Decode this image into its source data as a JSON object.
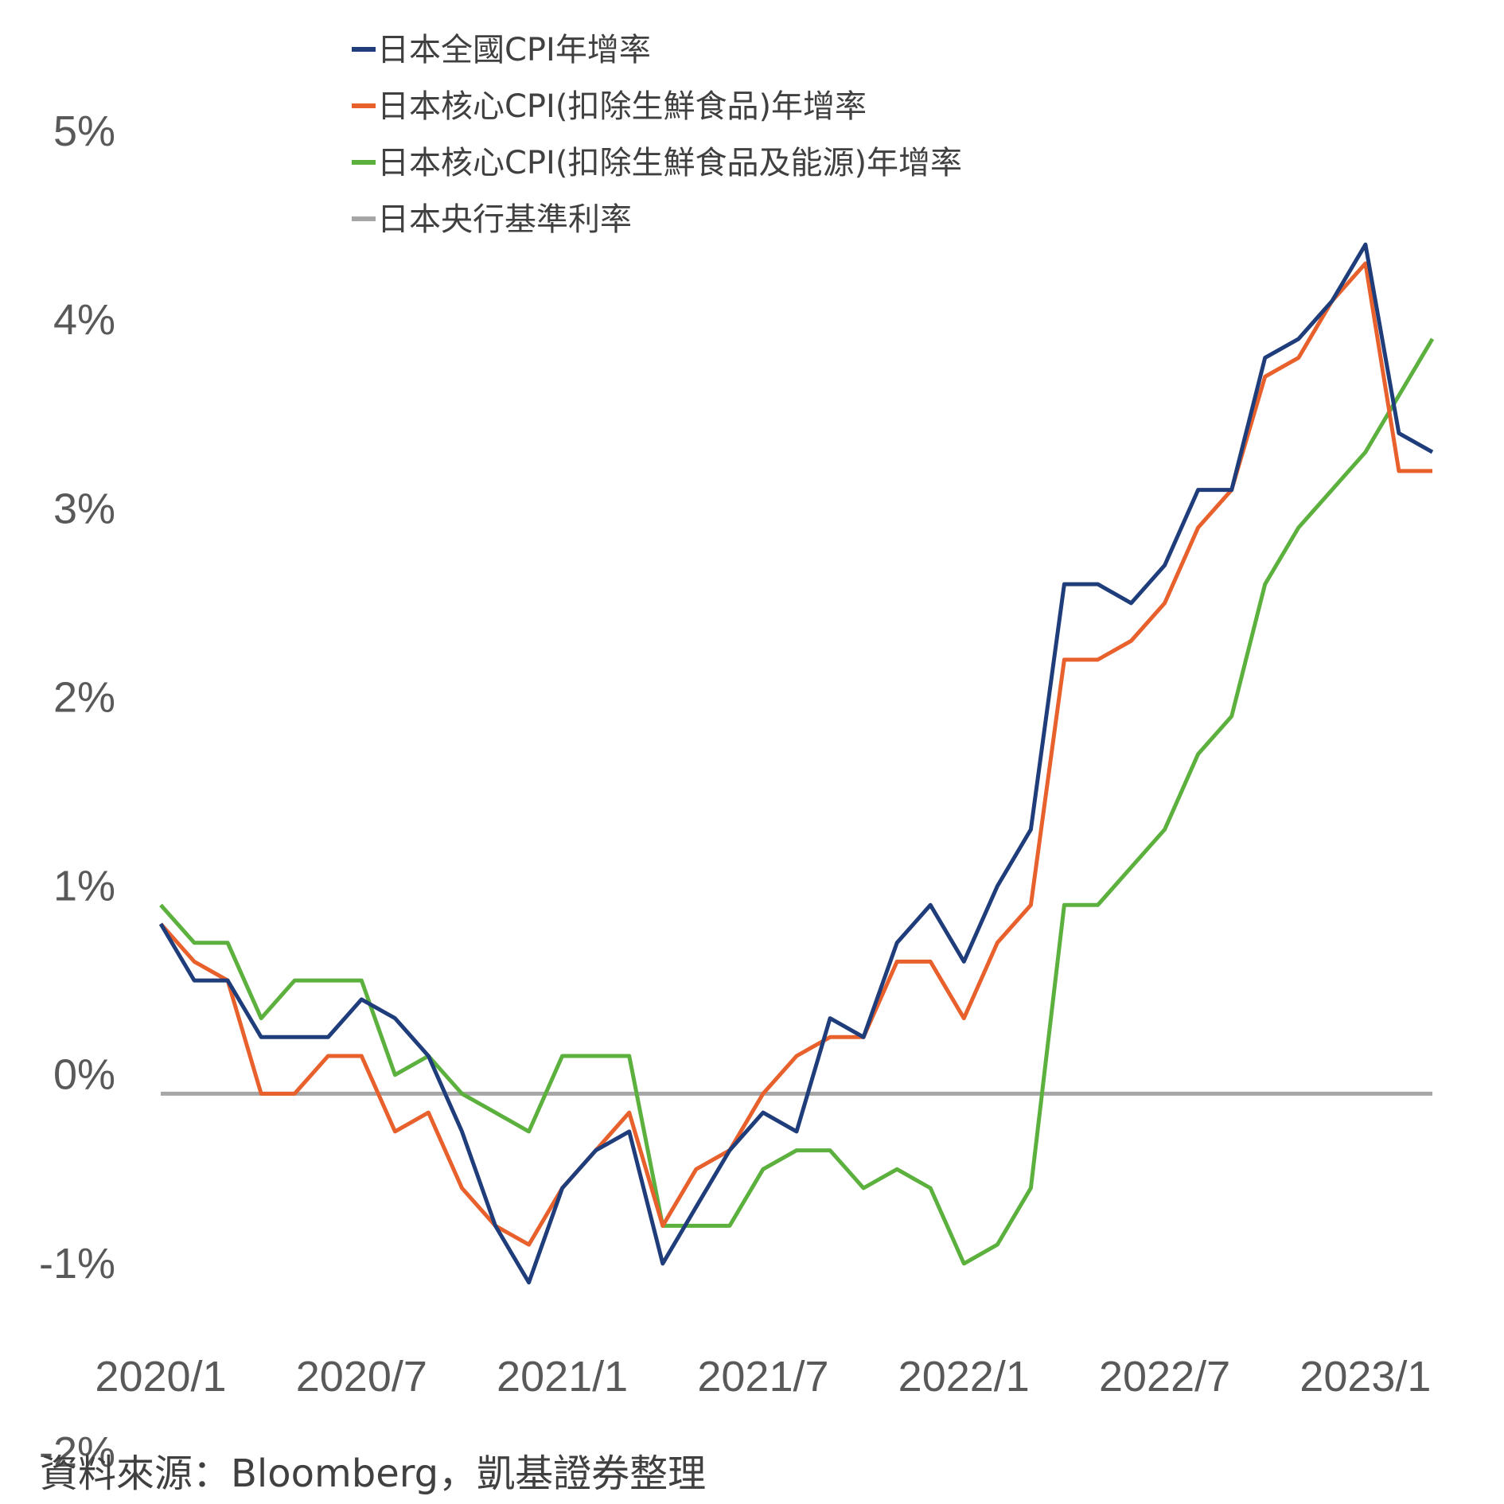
{
  "chart_data": {
    "type": "line",
    "title": "",
    "xlabel": "",
    "ylabel": "",
    "ylim": [
      -2,
      5
    ],
    "y_ticks": [
      "-2%",
      "-1%",
      "0%",
      "1%",
      "2%",
      "3%",
      "4%",
      "5%"
    ],
    "y_tick_values": [
      -2,
      -1,
      0,
      1,
      2,
      3,
      4,
      5
    ],
    "x": [
      "2020/1",
      "2020/2",
      "2020/3",
      "2020/4",
      "2020/5",
      "2020/6",
      "2020/7",
      "2020/8",
      "2020/9",
      "2020/10",
      "2020/11",
      "2020/12",
      "2021/1",
      "2021/2",
      "2021/3",
      "2021/4",
      "2021/5",
      "2021/6",
      "2021/7",
      "2021/8",
      "2021/9",
      "2021/10",
      "2021/11",
      "2021/12",
      "2022/1",
      "2022/2",
      "2022/3",
      "2022/4",
      "2022/5",
      "2022/6",
      "2022/7",
      "2022/8",
      "2022/9",
      "2022/10",
      "2022/11",
      "2022/12",
      "2023/1",
      "2023/2",
      "2023/3"
    ],
    "x_ticks": [
      "2020/1",
      "2020/7",
      "2021/1",
      "2021/7",
      "2022/1",
      "2022/7",
      "2023/1"
    ],
    "legend_position": "top-left",
    "grid": false,
    "series": [
      {
        "name": "日本全國CPI年增率",
        "color": "#1f3d7a",
        "values": [
          0.8,
          0.5,
          0.5,
          0.2,
          0.2,
          0.2,
          0.4,
          0.3,
          0.1,
          -0.3,
          -0.8,
          -1.1,
          -0.6,
          -0.4,
          -0.3,
          -1.0,
          -0.7,
          -0.4,
          -0.2,
          -0.3,
          0.3,
          0.2,
          0.7,
          0.9,
          0.6,
          1.0,
          1.3,
          2.6,
          2.6,
          2.5,
          2.7,
          3.1,
          3.1,
          3.8,
          3.9,
          4.1,
          4.4,
          3.4,
          3.3
        ]
      },
      {
        "name": "日本核心CPI(扣除生鮮食品)年增率",
        "color": "#e8602c",
        "values": [
          0.8,
          0.6,
          0.5,
          -0.1,
          -0.1,
          0.1,
          0.1,
          -0.3,
          -0.2,
          -0.6,
          -0.8,
          -0.9,
          -0.6,
          -0.4,
          -0.2,
          -0.8,
          -0.5,
          -0.4,
          -0.1,
          0.1,
          0.2,
          0.2,
          0.6,
          0.6,
          0.3,
          0.7,
          0.9,
          2.2,
          2.2,
          2.3,
          2.5,
          2.9,
          3.1,
          3.7,
          3.8,
          4.1,
          4.3,
          3.2,
          3.2
        ]
      },
      {
        "name": "日本核心CPI(扣除生鮮食品及能源)年增率",
        "color": "#5cb13e",
        "values": [
          0.9,
          0.7,
          0.7,
          0.3,
          0.5,
          0.5,
          0.5,
          0.0,
          0.1,
          -0.1,
          -0.2,
          -0.3,
          0.1,
          0.1,
          0.1,
          -0.8,
          -0.8,
          -0.8,
          -0.5,
          -0.4,
          -0.4,
          -0.6,
          -0.5,
          -0.6,
          -1.0,
          -0.9,
          -0.6,
          0.9,
          0.9,
          1.1,
          1.3,
          1.7,
          1.9,
          2.6,
          2.9,
          3.1,
          3.3,
          3.6,
          3.9
        ]
      },
      {
        "name": "日本央行基準利率",
        "color": "#a6a6a6",
        "values": [
          -0.1,
          -0.1,
          -0.1,
          -0.1,
          -0.1,
          -0.1,
          -0.1,
          -0.1,
          -0.1,
          -0.1,
          -0.1,
          -0.1,
          -0.1,
          -0.1,
          -0.1,
          -0.1,
          -0.1,
          -0.1,
          -0.1,
          -0.1,
          -0.1,
          -0.1,
          -0.1,
          -0.1,
          -0.1,
          -0.1,
          -0.1,
          -0.1,
          -0.1,
          -0.1,
          -0.1,
          -0.1,
          -0.1,
          -0.1,
          -0.1,
          -0.1,
          -0.1,
          -0.1,
          -0.1
        ]
      }
    ]
  },
  "source_note": "資料來源：Bloomberg，凱基證券整理"
}
